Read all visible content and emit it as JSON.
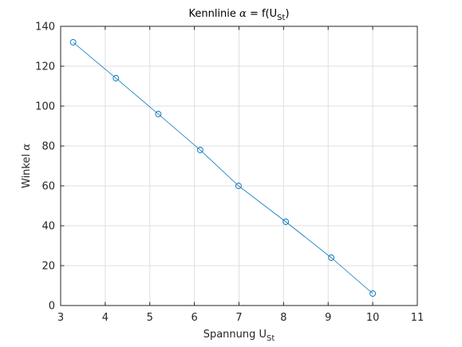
{
  "chart_data": {
    "type": "line",
    "title_parts": {
      "prefix": "Kennlinie ",
      "alpha": "α",
      "middle": " = f(U",
      "subscript": "St",
      "suffix": ")"
    },
    "xlabel_parts": {
      "main": "Spannung U",
      "subscript": "St"
    },
    "ylabel_parts": {
      "main": "Winkel ",
      "alpha": "α"
    },
    "xlim": [
      3,
      11
    ],
    "ylim": [
      0,
      140
    ],
    "xticks": [
      3,
      4,
      5,
      6,
      7,
      8,
      9,
      10,
      11
    ],
    "yticks": [
      0,
      20,
      40,
      60,
      80,
      100,
      120,
      140
    ],
    "grid": true,
    "marker": "circle",
    "series": [
      {
        "color": "#0072bd",
        "x": [
          3.28,
          4.24,
          5.19,
          6.13,
          6.99,
          8.05,
          9.07,
          10.0
        ],
        "y": [
          132,
          114,
          96,
          78,
          60,
          42,
          24,
          6
        ]
      }
    ]
  }
}
